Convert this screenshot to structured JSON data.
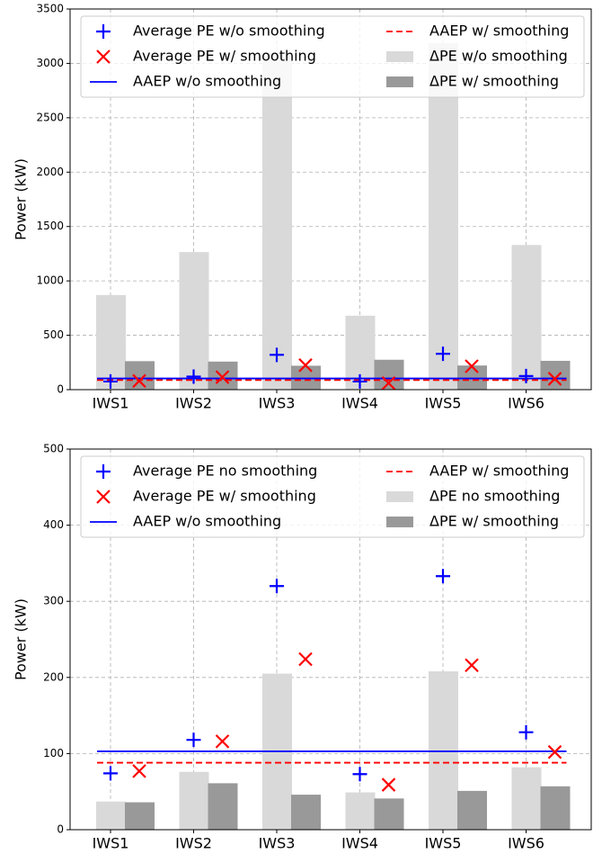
{
  "chart_data": [
    {
      "type": "bar",
      "ylabel": "Power (kW)",
      "categories": [
        "IWS1",
        "IWS2",
        "IWS3",
        "IWS4",
        "IWS5",
        "IWS6"
      ],
      "ylim": [
        0,
        3500
      ],
      "yticks": [
        0,
        500,
        1000,
        1500,
        2000,
        2500,
        3000,
        3500
      ],
      "grid": true,
      "series": [
        {
          "name": "Average PE w/o smoothing",
          "kind": "scatter",
          "marker": "plus",
          "color": "#0000ff",
          "values": [
            75,
            120,
            320,
            75,
            330,
            125
          ]
        },
        {
          "name": "Average PE w/ smoothing",
          "kind": "scatter",
          "marker": "x",
          "color": "#ff0000",
          "values": [
            80,
            115,
            225,
            60,
            215,
            100
          ]
        },
        {
          "name": "AAEP w/o smoothing",
          "kind": "hline",
          "style": "solid",
          "color": "#0000ff",
          "value": 103
        },
        {
          "name": "AAEP w/ smoothing",
          "kind": "hline",
          "style": "dashed",
          "color": "#ff0000",
          "value": 88
        },
        {
          "name": "ΔPE w/o smoothing",
          "kind": "bar",
          "color": "#d9d9d9",
          "values": [
            870,
            1265,
            3100,
            680,
            3185,
            1330
          ]
        },
        {
          "name": "ΔPE w/ smoothing",
          "kind": "bar",
          "color": "#999999",
          "values": [
            262,
            258,
            220,
            275,
            222,
            265
          ]
        }
      ]
    },
    {
      "type": "bar",
      "ylabel": "Power (kW)",
      "categories": [
        "IWS1",
        "IWS2",
        "IWS3",
        "IWS4",
        "IWS5",
        "IWS6"
      ],
      "ylim": [
        0,
        500
      ],
      "yticks": [
        0,
        100,
        200,
        300,
        400,
        500
      ],
      "grid": true,
      "series": [
        {
          "name": "Average PE no smoothing",
          "kind": "scatter",
          "marker": "plus",
          "color": "#0000ff",
          "values": [
            74,
            118,
            320,
            73,
            333,
            128
          ]
        },
        {
          "name": "Average PE w/ smoothing",
          "kind": "scatter",
          "marker": "x",
          "color": "#ff0000",
          "values": [
            77,
            116,
            224,
            59,
            216,
            102
          ]
        },
        {
          "name": "AAEP w/o smoothing",
          "kind": "hline",
          "style": "solid",
          "color": "#0000ff",
          "value": 103
        },
        {
          "name": "AAEP w/ smoothing",
          "kind": "hline",
          "style": "dashed",
          "color": "#ff0000",
          "value": 88
        },
        {
          "name": "ΔPE no smoothing",
          "kind": "bar",
          "color": "#d9d9d9",
          "values": [
            37,
            76,
            205,
            49,
            208,
            82
          ]
        },
        {
          "name": "ΔPE w/ smoothing",
          "kind": "bar",
          "color": "#999999",
          "values": [
            36,
            61,
            46,
            41,
            51,
            57
          ]
        }
      ]
    }
  ]
}
